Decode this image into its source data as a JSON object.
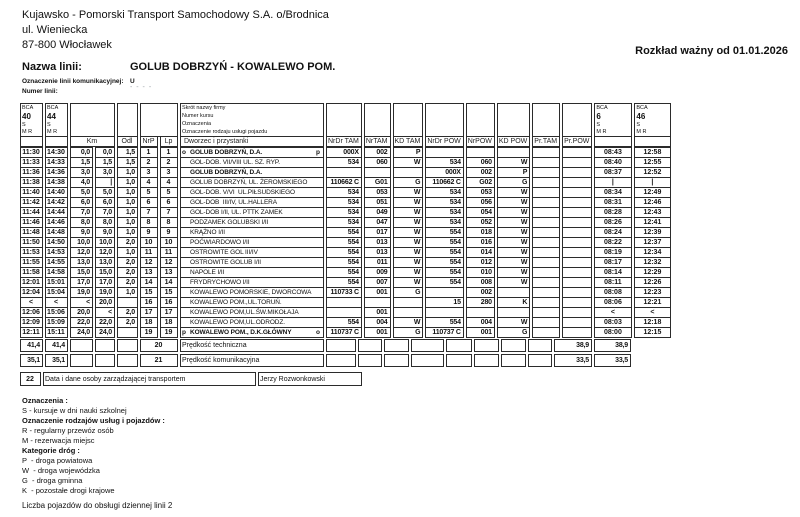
{
  "header": {
    "company_lines": [
      "Kujawsko - Pomorski Transport Samochodowy S.A. o/Brodnica",
      "ul. Wieniecka",
      "87-800 Włocławek"
    ],
    "valid_from": "Rozkład ważny od 01.01.2026",
    "line_name_label": "Nazwa linii:",
    "line_name": "GOLUB DOBRZYŃ - KOWALEWO POM.",
    "line_designation_label": "Oznaczenie linii komunikacyjnej:",
    "line_designation_value": "U",
    "line_number_label": "Numer linii:",
    "line_number_value": "- - - -"
  },
  "table": {
    "corners": {
      "left": [
        [
          "BCA",
          "40",
          "S",
          "M R"
        ],
        [
          "BCA",
          "44",
          "S",
          "M R"
        ]
      ],
      "right": [
        [
          "BCA",
          "6",
          "S",
          "M R"
        ],
        [
          "BCA",
          "46",
          "S",
          "M R"
        ]
      ]
    },
    "station_header_lines": [
      "Skrót nazwy firmy",
      "Numer kursu",
      "Oznaczenia",
      "Oznaczenie rodzaju usługi pojazdu"
    ],
    "headers": {
      "km": "Km",
      "odl": "Odl",
      "nrp": "NrP",
      "lp": "Lp",
      "station": "Dworzec i przystanki",
      "ndt": "NrDr TAM",
      "nt": "NrTAM",
      "kdt": "KD TAM",
      "ndp": "NrDr POW",
      "np": "NrPOW",
      "kdp": "KD POW",
      "prt": "Pr.TAM",
      "prp": "Pr.POW"
    },
    "rows": [
      {
        "t1": "11:30",
        "t2": "14:30",
        "km1": "0,0",
        "km2": "0,0",
        "odl": "1,5",
        "nrp": "1",
        "lp": "1",
        "pre": "o",
        "name": "GOLUB DOBRZYŃ, D.A.",
        "bold": true,
        "post": "p",
        "ndt": "000X",
        "nt": "002",
        "kdt": "P",
        "ndp": "",
        "np": "",
        "kdp": "",
        "prt": "",
        "prp": "",
        "r1": "08:43",
        "r2": "12:58"
      },
      {
        "t1": "11:33",
        "t2": "14:33",
        "km1": "1,5",
        "km2": "1,5",
        "odl": "1,5",
        "nrp": "2",
        "lp": "2",
        "pre": "",
        "name": "GOL-DOB. VII/VIII UL. SZ. RYP.",
        "bold": false,
        "post": "",
        "ndt": "534",
        "nt": "060",
        "kdt": "W",
        "ndp": "534",
        "np": "060",
        "kdp": "W",
        "prt": "",
        "prp": "",
        "r1": "08:40",
        "r2": "12:55"
      },
      {
        "t1": "11:36",
        "t2": "14:36",
        "km1": "3,0",
        "km2": "3,0",
        "odl": "1,0",
        "nrp": "3",
        "lp": "3",
        "pre": "",
        "name": "GOLUB DOBRZYŃ, D.A.",
        "bold": true,
        "post": "",
        "ndt": "",
        "nt": "",
        "kdt": "",
        "ndp": "000X",
        "np": "002",
        "kdp": "P",
        "prt": "",
        "prp": "",
        "r1": "08:37",
        "r2": "12:52"
      },
      {
        "t1": "11:38",
        "t2": "14:38",
        "km1": "4,0",
        "km2": "|",
        "odl": "1,0",
        "nrp": "4",
        "lp": "4",
        "pre": "",
        "name": "GOLUB DOBRZYŃ, UL. ŻEROMSKIEGO",
        "bold": false,
        "post": "",
        "ndt": "110662 C",
        "nt": "G01",
        "kdt": "G",
        "ndp": "110662 C",
        "np": "G02",
        "kdp": "G",
        "prt": "",
        "prp": "",
        "r1": "|",
        "r2": "|"
      },
      {
        "t1": "11:40",
        "t2": "14:40",
        "km1": "5,0",
        "km2": "5,0",
        "odl": "1,0",
        "nrp": "5",
        "lp": "5",
        "pre": "",
        "name": "GOL-DOB. V/VI  UL.PIŁSUDSKIEGO",
        "bold": false,
        "post": "",
        "ndt": "534",
        "nt": "053",
        "kdt": "W",
        "ndp": "534",
        "np": "053",
        "kdp": "W",
        "prt": "",
        "prp": "",
        "r1": "08:34",
        "r2": "12:49"
      },
      {
        "t1": "11:42",
        "t2": "14:42",
        "km1": "6,0",
        "km2": "6,0",
        "odl": "1,0",
        "nrp": "6",
        "lp": "6",
        "pre": "",
        "name": "GOL-DOB  III/IV, UL.HALLERA",
        "bold": false,
        "post": "",
        "ndt": "534",
        "nt": "051",
        "kdt": "W",
        "ndp": "534",
        "np": "056",
        "kdp": "W",
        "prt": "",
        "prp": "",
        "r1": "08:31",
        "r2": "12:46"
      },
      {
        "t1": "11:44",
        "t2": "14:44",
        "km1": "7,0",
        "km2": "7,0",
        "odl": "1,0",
        "nrp": "7",
        "lp": "7",
        "pre": "",
        "name": "GOL-DOB I/II, UL. PTTK ZAMEK",
        "bold": false,
        "post": "",
        "ndt": "534",
        "nt": "049",
        "kdt": "W",
        "ndp": "534",
        "np": "054",
        "kdp": "W",
        "prt": "",
        "prp": "",
        "r1": "08:28",
        "r2": "12:43"
      },
      {
        "t1": "11:46",
        "t2": "14:46",
        "km1": "8,0",
        "km2": "8,0",
        "odl": "1,0",
        "nrp": "8",
        "lp": "8",
        "pre": "",
        "name": "PODZAMEK GOLUBSKI I/II",
        "bold": false,
        "post": "",
        "ndt": "534",
        "nt": "047",
        "kdt": "W",
        "ndp": "534",
        "np": "052",
        "kdp": "W",
        "prt": "",
        "prp": "",
        "r1": "08:26",
        "r2": "12:41"
      },
      {
        "t1": "11:48",
        "t2": "14:48",
        "km1": "9,0",
        "km2": "9,0",
        "odl": "1,0",
        "nrp": "9",
        "lp": "9",
        "pre": "",
        "name": "KRĄŻNO I/II",
        "bold": false,
        "post": "",
        "ndt": "554",
        "nt": "017",
        "kdt": "W",
        "ndp": "554",
        "np": "018",
        "kdp": "W",
        "prt": "",
        "prp": "",
        "r1": "08:24",
        "r2": "12:39"
      },
      {
        "t1": "11:50",
        "t2": "14:50",
        "km1": "10,0",
        "km2": "10,0",
        "odl": "2,0",
        "nrp": "10",
        "lp": "10",
        "pre": "",
        "name": "POĆWIARDOWO I/II",
        "bold": false,
        "post": "",
        "ndt": "554",
        "nt": "013",
        "kdt": "W",
        "ndp": "554",
        "np": "016",
        "kdp": "W",
        "prt": "",
        "prp": "",
        "r1": "08:22",
        "r2": "12:37"
      },
      {
        "t1": "11:53",
        "t2": "14:53",
        "km1": "12,0",
        "km2": "12,0",
        "odl": "1,0",
        "nrp": "11",
        "lp": "11",
        "pre": "",
        "name": "OSTROWITE GOL III/IV",
        "bold": false,
        "post": "",
        "ndt": "554",
        "nt": "013",
        "kdt": "W",
        "ndp": "554",
        "np": "014",
        "kdp": "W",
        "prt": "",
        "prp": "",
        "r1": "08:19",
        "r2": "12:34"
      },
      {
        "t1": "11:55",
        "t2": "14:55",
        "km1": "13,0",
        "km2": "13,0",
        "odl": "2,0",
        "nrp": "12",
        "lp": "12",
        "pre": "",
        "name": "OSTROWITE GOLUB I/II",
        "bold": false,
        "post": "",
        "ndt": "554",
        "nt": "011",
        "kdt": "W",
        "ndp": "554",
        "np": "012",
        "kdp": "W",
        "prt": "",
        "prp": "",
        "r1": "08:17",
        "r2": "12:32"
      },
      {
        "t1": "11:58",
        "t2": "14:58",
        "km1": "15,0",
        "km2": "15,0",
        "odl": "2,0",
        "nrp": "13",
        "lp": "13",
        "pre": "",
        "name": "NAPOLE I/II",
        "bold": false,
        "post": "",
        "ndt": "554",
        "nt": "009",
        "kdt": "W",
        "ndp": "554",
        "np": "010",
        "kdp": "W",
        "prt": "",
        "prp": "",
        "r1": "08:14",
        "r2": "12:29"
      },
      {
        "t1": "12:01",
        "t2": "15:01",
        "km1": "17,0",
        "km2": "17,0",
        "odl": "2,0",
        "nrp": "14",
        "lp": "14",
        "pre": "",
        "name": "FRYDRYCHOWO I/II",
        "bold": false,
        "post": "",
        "ndt": "554",
        "nt": "007",
        "kdt": "W",
        "ndp": "554",
        "np": "008",
        "kdp": "W",
        "prt": "",
        "prp": "",
        "r1": "08:11",
        "r2": "12:26"
      },
      {
        "t1": "12:04",
        "t2": "15:04",
        "km1": "19,0",
        "km2": "19,0",
        "odl": "1,0",
        "nrp": "15",
        "lp": "15",
        "pre": "",
        "name": "KOWALEWO POMORSKIE, DWORCOWA",
        "bold": false,
        "post": "",
        "ndt": "110733 C",
        "nt": "001",
        "kdt": "G",
        "ndp": "",
        "np": "002",
        "kdp": "",
        "prt": "",
        "prp": "",
        "r1": "08:08",
        "r2": "12:23"
      },
      {
        "t1": "<",
        "t2": "<",
        "km1": "<",
        "km2": "20,0",
        "odl": "",
        "nrp": "16",
        "lp": "16",
        "pre": "",
        "name": "KOWALEWO POM.,UL.TORUŃ.",
        "bold": false,
        "post": "",
        "ndt": "",
        "nt": "",
        "kdt": "",
        "ndp": "15",
        "np": "280",
        "kdp": "K",
        "prt": "",
        "prp": "",
        "r1": "08:06",
        "r2": "12:21"
      },
      {
        "t1": "12:06",
        "t2": "15:06",
        "km1": "20,0",
        "km2": "<",
        "odl": "2,0",
        "nrp": "17",
        "lp": "17",
        "pre": "",
        "name": "KOWALEWO POM,UL.ŚW.MIKOŁAJA",
        "bold": false,
        "post": "",
        "ndt": "",
        "nt": "001",
        "kdt": "",
        "ndp": "",
        "np": "",
        "kdp": "",
        "prt": "",
        "prp": "",
        "r1": "<",
        "r2": "<"
      },
      {
        "t1": "12:09",
        "t2": "15:09",
        "km1": "22,0",
        "km2": "22,0",
        "odl": "2,0",
        "nrp": "18",
        "lp": "18",
        "pre": "",
        "name": "KOWALEWO POM,UL.ODRODZ.",
        "bold": false,
        "post": "",
        "ndt": "554",
        "nt": "004",
        "kdt": "W",
        "ndp": "554",
        "np": "004",
        "kdp": "W",
        "prt": "",
        "prp": "",
        "r1": "08:03",
        "r2": "12:18"
      },
      {
        "t1": "12:11",
        "t2": "15:11",
        "km1": "24,0",
        "km2": "24,0",
        "odl": "",
        "nrp": "19",
        "lp": "19",
        "pre": "p",
        "name": "KOWALEWO POM., D.K.GŁÓWNY",
        "bold": true,
        "post": "o",
        "ndt": "110737 C",
        "nt": "001",
        "kdt": "G",
        "ndp": "110737 C",
        "np": "001",
        "kdp": "G",
        "prt": "",
        "prp": "",
        "r1": "08:00",
        "r2": "12:15"
      }
    ],
    "summary_rows": [
      {
        "t1": "41,4",
        "t2": "41,4",
        "no": "20",
        "label": "Prędkość techniczna",
        "r1": "38,9",
        "r2": "38,9"
      },
      {
        "t1": "35,1",
        "t2": "35,1",
        "no": "21",
        "label": "Prędkość komunikacyjna",
        "r1": "33,5",
        "r2": "33,5"
      }
    ],
    "manager_row": {
      "no": "22",
      "label": "Data i dane osoby zarządzającej transportem",
      "value": "Jerzy Rozwonkowski"
    }
  },
  "footer": {
    "legend": [
      {
        "text": "Oznaczenia :",
        "bold": true
      },
      {
        "text": "S - kursuje w dni nauki szkolnej",
        "bold": false
      },
      {
        "text": "Oznaczenie rodzajów usług i pojazdów :",
        "bold": true
      },
      {
        "text": "R - regularny przewóz osób",
        "bold": false
      },
      {
        "text": "M - rezerwacja miejsc",
        "bold": false
      },
      {
        "text": "Kategorie dróg :",
        "bold": true
      },
      {
        "text": "P  - droga powiatowa",
        "bold": false
      },
      {
        "text": "W  - droga wojewódzka",
        "bold": false
      },
      {
        "text": "G  - droga gminna",
        "bold": false
      },
      {
        "text": "K  - pozostałe drogi krajowe",
        "bold": false
      }
    ],
    "vehicles_note": "Liczba pojazdów do obsługi dziennej linii 2"
  }
}
